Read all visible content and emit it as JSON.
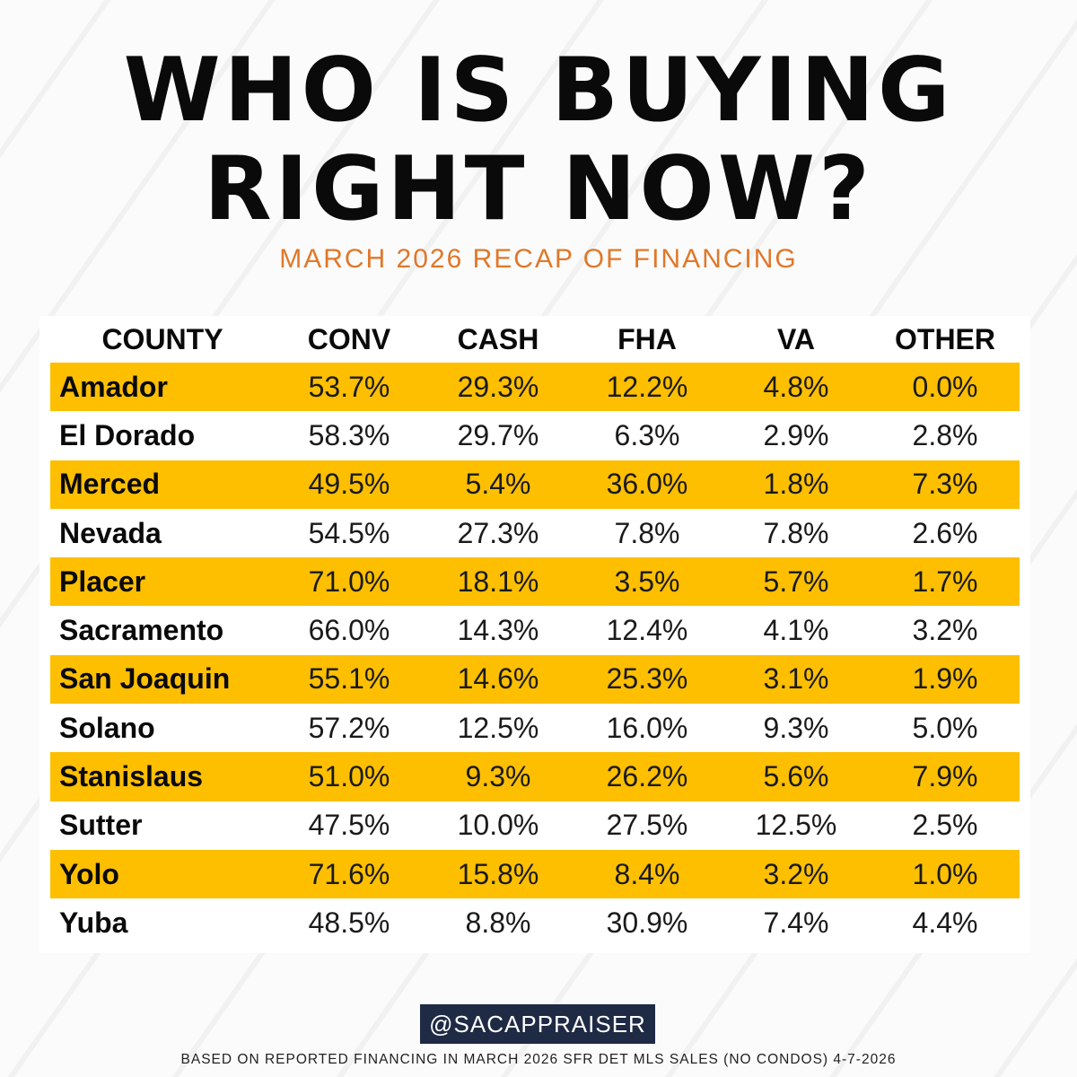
{
  "header": {
    "title_line1": "WHO IS BUYING",
    "title_line2": "RIGHT NOW?",
    "subtitle": "MARCH 2026 RECAP OF FINANCING"
  },
  "table": {
    "columns": [
      "COUNTY",
      "CONV",
      "CASH",
      "FHA",
      "VA",
      "OTHER"
    ],
    "rows": [
      {
        "county": "Amador",
        "conv": "53.7%",
        "cash": "29.3%",
        "fha": "12.2%",
        "va": "4.8%",
        "other": "0.0%",
        "highlight": true
      },
      {
        "county": "El Dorado",
        "conv": "58.3%",
        "cash": "29.7%",
        "fha": "6.3%",
        "va": "2.9%",
        "other": "2.8%",
        "highlight": false
      },
      {
        "county": "Merced",
        "conv": "49.5%",
        "cash": "5.4%",
        "fha": "36.0%",
        "va": "1.8%",
        "other": "7.3%",
        "highlight": true
      },
      {
        "county": "Nevada",
        "conv": "54.5%",
        "cash": "27.3%",
        "fha": "7.8%",
        "va": "7.8%",
        "other": "2.6%",
        "highlight": false
      },
      {
        "county": "Placer",
        "conv": "71.0%",
        "cash": "18.1%",
        "fha": "3.5%",
        "va": "5.7%",
        "other": "1.7%",
        "highlight": true
      },
      {
        "county": "Sacramento",
        "conv": "66.0%",
        "cash": "14.3%",
        "fha": "12.4%",
        "va": "4.1%",
        "other": "3.2%",
        "highlight": false
      },
      {
        "county": "San Joaquin",
        "conv": "55.1%",
        "cash": "14.6%",
        "fha": "25.3%",
        "va": "3.1%",
        "other": "1.9%",
        "highlight": true
      },
      {
        "county": "Solano",
        "conv": "57.2%",
        "cash": "12.5%",
        "fha": "16.0%",
        "va": "9.3%",
        "other": "5.0%",
        "highlight": false
      },
      {
        "county": "Stanislaus",
        "conv": "51.0%",
        "cash": "9.3%",
        "fha": "26.2%",
        "va": "5.6%",
        "other": "7.9%",
        "highlight": true
      },
      {
        "county": "Sutter",
        "conv": "47.5%",
        "cash": "10.0%",
        "fha": "27.5%",
        "va": "12.5%",
        "other": "2.5%",
        "highlight": false
      },
      {
        "county": "Yolo",
        "conv": "71.6%",
        "cash": "15.8%",
        "fha": "8.4%",
        "va": "3.2%",
        "other": "1.0%",
        "highlight": true
      },
      {
        "county": "Yuba",
        "conv": "48.5%",
        "cash": "8.8%",
        "fha": "30.9%",
        "va": "7.4%",
        "other": "4.4%",
        "highlight": false
      }
    ]
  },
  "footer": {
    "handle": "@SACAPPRAISER",
    "note": "BASED ON REPORTED FINANCING IN MARCH 2026 SFR DET MLS SALES (NO CONDOS) 4-7-2026"
  },
  "colors": {
    "highlight_row": "#fdbf00",
    "subtitle": "#e0782a",
    "handle_bg": "#1f2b45",
    "title": "#0a0a0a"
  },
  "chart_data": {
    "type": "table",
    "title": "WHO IS BUYING RIGHT NOW?",
    "subtitle": "MARCH 2026 RECAP OF FINANCING",
    "categories": [
      "Amador",
      "El Dorado",
      "Merced",
      "Nevada",
      "Placer",
      "Sacramento",
      "San Joaquin",
      "Solano",
      "Stanislaus",
      "Sutter",
      "Yolo",
      "Yuba"
    ],
    "series": [
      {
        "name": "CONV",
        "values": [
          53.7,
          58.3,
          49.5,
          54.5,
          71.0,
          66.0,
          55.1,
          57.2,
          51.0,
          47.5,
          71.6,
          48.5
        ]
      },
      {
        "name": "CASH",
        "values": [
          29.3,
          29.7,
          5.4,
          27.3,
          18.1,
          14.3,
          14.6,
          12.5,
          9.3,
          10.0,
          15.8,
          8.8
        ]
      },
      {
        "name": "FHA",
        "values": [
          12.2,
          6.3,
          36.0,
          7.8,
          3.5,
          12.4,
          25.3,
          16.0,
          26.2,
          27.5,
          8.4,
          30.9
        ]
      },
      {
        "name": "VA",
        "values": [
          4.8,
          2.9,
          1.8,
          7.8,
          5.7,
          4.1,
          3.1,
          9.3,
          5.6,
          12.5,
          3.2,
          7.4
        ]
      },
      {
        "name": "OTHER",
        "values": [
          0.0,
          2.8,
          7.3,
          2.6,
          1.7,
          3.2,
          1.9,
          5.0,
          7.9,
          2.5,
          1.0,
          4.4
        ]
      }
    ],
    "unit": "%",
    "xlabel": "COUNTY",
    "ylabel": "",
    "annotations": [
      "@SACAPPRAISER",
      "BASED ON REPORTED FINANCING IN MARCH 2026 SFR DET MLS SALES (NO CONDOS) 4-7-2026"
    ]
  }
}
